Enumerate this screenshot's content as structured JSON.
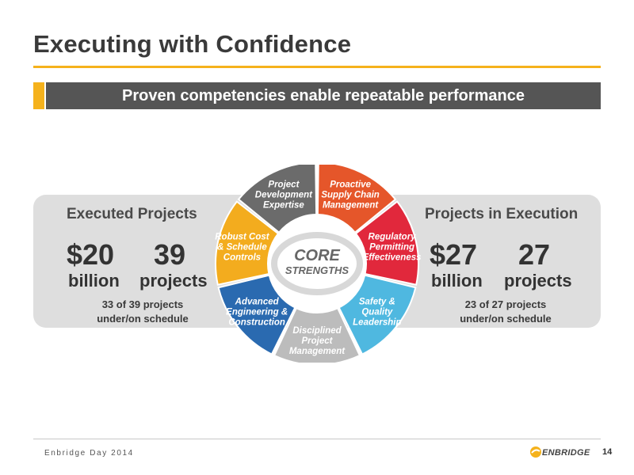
{
  "title": "Executing with Confidence",
  "banner": "Proven competencies enable repeatable performance",
  "left": {
    "heading": "Executed Projects",
    "amount": "$20",
    "amount_unit": "billion",
    "count": "39",
    "count_unit": "projects",
    "note_line1": "33 of 39 projects",
    "note_line2": "under/on schedule"
  },
  "right": {
    "heading": "Projects in Execution",
    "amount": "$27",
    "amount_unit": "billion",
    "count": "27",
    "count_unit": "projects",
    "note_line1": "23 of 27 projects",
    "note_line2": "under/on schedule"
  },
  "wheel": {
    "center_line1": "CORE",
    "center_line2": "STRENGTHS",
    "segments": [
      {
        "lines": [
          "Project",
          "Development",
          "Expertise"
        ],
        "color": "#6b6b6b"
      },
      {
        "lines": [
          "Proactive",
          "Supply Chain",
          "Management"
        ],
        "color": "#e5562a"
      },
      {
        "lines": [
          "Regulatory",
          "Permitting",
          "Effectiveness"
        ],
        "color": "#e1283c"
      },
      {
        "lines": [
          "Safety &",
          "Quality",
          "Leadership"
        ],
        "color": "#4fb8e0"
      },
      {
        "lines": [
          "Disciplined",
          "Project",
          "Management"
        ],
        "color": "#bcbcbc"
      },
      {
        "lines": [
          "Advanced",
          "Engineering &",
          "Construction"
        ],
        "color": "#2a6ab0"
      },
      {
        "lines": [
          "Robust Cost",
          "& Schedule",
          "Controls"
        ],
        "color": "#f3ac1e"
      }
    ]
  },
  "footer": {
    "event": "Enbridge Day 2014",
    "logo": "ENBRIDGE",
    "page": "14"
  },
  "colors": {
    "accent": "#f5b21c",
    "banner_bg": "#555555",
    "panel_bg": "#dedede"
  }
}
